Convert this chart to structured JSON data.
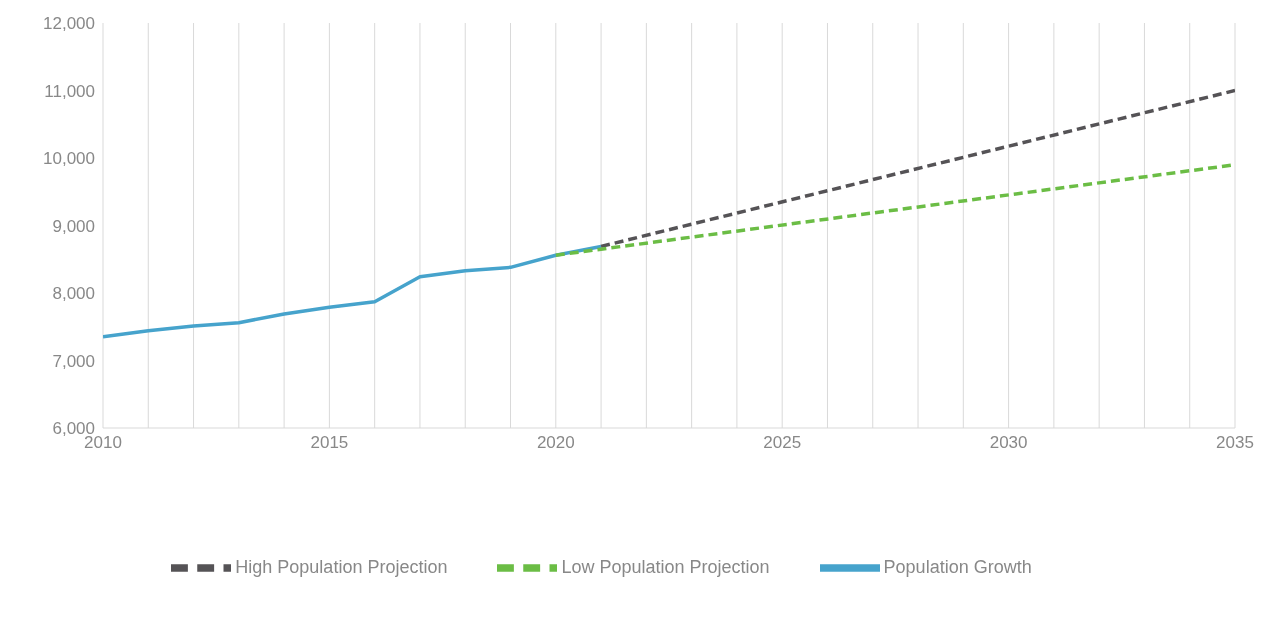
{
  "chart_data": {
    "type": "line",
    "xlim": [
      2010,
      2035
    ],
    "ylim": [
      6000,
      12000
    ],
    "xticks": [
      2010,
      {
        "value": 2011,
        "label": null
      },
      {
        "value": 2012,
        "label": null
      },
      {
        "value": 2013,
        "label": null
      },
      {
        "value": 2014,
        "label": null
      },
      2015,
      {
        "value": 2016,
        "label": null
      },
      {
        "value": 2017,
        "label": null
      },
      {
        "value": 2018,
        "label": null
      },
      {
        "value": 2019,
        "label": null
      },
      2020,
      {
        "value": 2021,
        "label": null
      },
      {
        "value": 2022,
        "label": null
      },
      {
        "value": 2023,
        "label": null
      },
      {
        "value": 2024,
        "label": null
      },
      2025,
      {
        "value": 2026,
        "label": null
      },
      {
        "value": 2027,
        "label": null
      },
      {
        "value": 2028,
        "label": null
      },
      {
        "value": 2029,
        "label": null
      },
      2030,
      {
        "value": 2031,
        "label": null
      },
      {
        "value": 2032,
        "label": null
      },
      {
        "value": 2033,
        "label": null
      },
      {
        "value": 2034,
        "label": null
      },
      2035
    ],
    "yticks": [
      {
        "value": 6000,
        "label": "6,000"
      },
      {
        "value": 7000,
        "label": "7,000"
      },
      {
        "value": 8000,
        "label": "8,000"
      },
      {
        "value": 9000,
        "label": "9,000"
      },
      {
        "value": 10000,
        "label": "10,000"
      },
      {
        "value": 11000,
        "label": "11,000"
      },
      {
        "value": 12000,
        "label": "12,000"
      }
    ],
    "grid": "x",
    "legend": "bottom",
    "marker": "none",
    "series": [
      {
        "name": "High Population Projection",
        "color": "#555356",
        "line_style": "dashed",
        "x": [
          2021,
          2035
        ],
        "values": [
          8690,
          11000
        ]
      },
      {
        "name": "Low Population Projection",
        "color": "#6bbd45",
        "line_style": "dashed",
        "x": [
          2020,
          2035
        ],
        "values": [
          8560,
          9900
        ]
      },
      {
        "name": "Population Growth",
        "color": "#46a3cc",
        "line_style": "solid",
        "x": [
          2010,
          2011,
          2012,
          2013,
          2014,
          2015,
          2016,
          2017,
          2018,
          2019,
          2020,
          2021
        ],
        "values": [
          7350,
          7440,
          7510,
          7560,
          7690,
          7790,
          7870,
          8240,
          8330,
          8380,
          8560,
          8690
        ]
      }
    ]
  }
}
